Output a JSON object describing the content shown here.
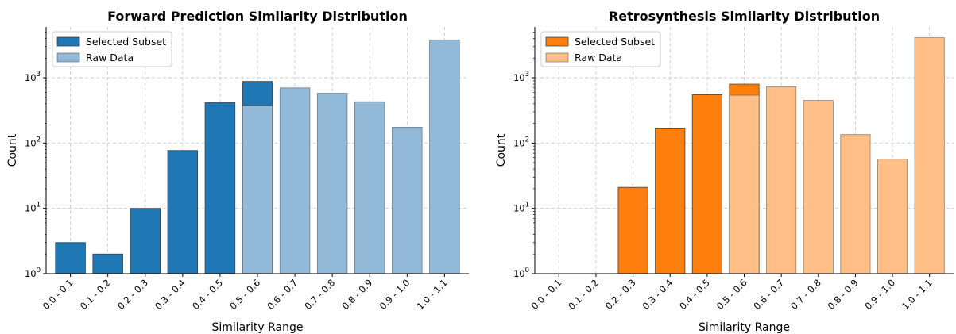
{
  "chart_data": [
    {
      "type": "bar",
      "title": "Forward Prediction Similarity Distribution",
      "xlabel": "Similarity Range",
      "ylabel": "Count",
      "yscale": "log",
      "ylim": [
        1,
        6000
      ],
      "yticks": [
        {
          "value": 1,
          "base": "10",
          "exp": "0"
        },
        {
          "value": 10,
          "base": "10",
          "exp": "1"
        },
        {
          "value": 100,
          "base": "10",
          "exp": "2"
        },
        {
          "value": 1000,
          "base": "10",
          "exp": "3"
        }
      ],
      "grid": true,
      "legend_position": "top-left",
      "categories": [
        "0.0 - 0.1",
        "0.1 - 0.2",
        "0.2 - 0.3",
        "0.3 - 0.4",
        "0.4 - 0.5",
        "0.5 - 0.6",
        "0.6 - 0.7",
        "0.7 - 0.8",
        "0.8 - 0.9",
        "0.9 - 1.0",
        "1.0 - 1.1"
      ],
      "series": [
        {
          "name": "Selected Subset",
          "color": "#1f77b4",
          "values": [
            3,
            2,
            10,
            77,
            420,
            880,
            null,
            null,
            null,
            null,
            null
          ]
        },
        {
          "name": "Raw Data",
          "color": "#92bad8",
          "values": [
            null,
            null,
            null,
            null,
            null,
            380,
            700,
            580,
            430,
            175,
            3800
          ]
        }
      ]
    },
    {
      "type": "bar",
      "title": "Retrosynthesis Similarity Distribution",
      "xlabel": "Similarity Range",
      "ylabel": "Count",
      "yscale": "log",
      "ylim": [
        1,
        6000
      ],
      "yticks": [
        {
          "value": 1,
          "base": "10",
          "exp": "0"
        },
        {
          "value": 10,
          "base": "10",
          "exp": "1"
        },
        {
          "value": 100,
          "base": "10",
          "exp": "2"
        },
        {
          "value": 1000,
          "base": "10",
          "exp": "3"
        }
      ],
      "grid": true,
      "legend_position": "top-left",
      "categories": [
        "0.0 - 0.1",
        "0.1 - 0.2",
        "0.2 - 0.3",
        "0.3 - 0.4",
        "0.4 - 0.5",
        "0.5 - 0.6",
        "0.6 - 0.7",
        "0.7 - 0.8",
        "0.8 - 0.9",
        "0.9 - 1.0",
        "1.0 - 1.1"
      ],
      "series": [
        {
          "name": "Selected Subset",
          "color": "#ff7f0e",
          "values": [
            1,
            1,
            21,
            170,
            550,
            800,
            null,
            null,
            null,
            null,
            null
          ]
        },
        {
          "name": "Raw Data",
          "color": "#ffbf86",
          "values": [
            null,
            null,
            null,
            null,
            null,
            540,
            730,
            450,
            135,
            57,
            4100
          ]
        }
      ]
    }
  ]
}
